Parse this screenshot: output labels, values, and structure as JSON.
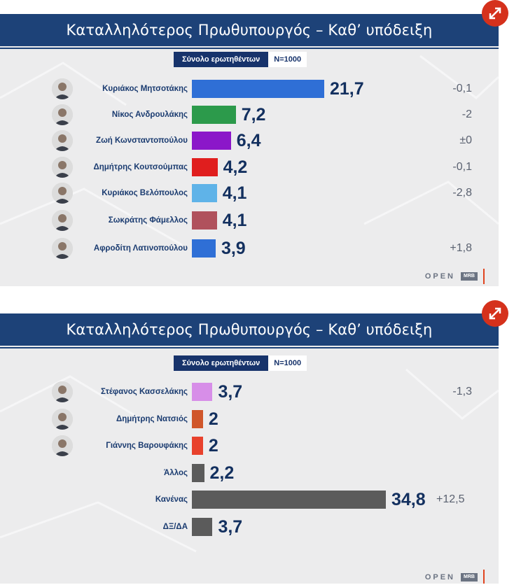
{
  "panels": [
    {
      "title": "Καταλληλότερος Πρωθυπουργός – Καθ’ υπόδειξη",
      "subtitle_label": "Σύνολο ερωτηθέντων",
      "n_label": "N=1000",
      "logo_text": "OPEN",
      "logo_badge": "MRB"
    },
    {
      "title": "Καταλληλότερος Πρωθυπουργός – Καθ’ υπόδειξη",
      "subtitle_label": "Σύνολο ερωτηθέντων",
      "n_label": "N=1000",
      "logo_text": "OPEN",
      "logo_badge": "MRB"
    }
  ],
  "chart_data": [
    {
      "type": "bar",
      "orientation": "horizontal",
      "title": "Καταλληλότερος Πρωθυπουργός – Καθ’ υπόδειξη",
      "categories": [
        "Κυριάκος Μητσοτάκης",
        "Νίκος Ανδρουλάκης",
        "Ζωή Κωνσταντοπούλου",
        "Δημήτρης Κουτσούμπας",
        "Κυριάκος Βελόπουλος",
        "Σωκράτης Φάμελλος",
        "Αφροδίτη Λατινοπούλου"
      ],
      "values": [
        21.7,
        7.2,
        6.4,
        4.2,
        4.1,
        4.1,
        3.9
      ],
      "value_labels": [
        "21,7",
        "7,2",
        "6,4",
        "4,2",
        "4,1",
        "4,1",
        "3,9"
      ],
      "changes": [
        "-0,1",
        "-2",
        "±0",
        "-0,1",
        "-2,8",
        "",
        "+1,8"
      ],
      "colors": [
        "#2f6fd6",
        "#2c9a4b",
        "#8b17c9",
        "#e01e1e",
        "#5fb3e8",
        "#b0515c",
        "#2f6fd6"
      ],
      "with_avatar": [
        true,
        true,
        true,
        true,
        true,
        true,
        true
      ]
    },
    {
      "type": "bar",
      "orientation": "horizontal",
      "title": "Καταλληλότερος Πρωθυπουργός – Καθ’ υπόδειξη",
      "categories": [
        "Στέφανος Κασσελάκης",
        "Δημήτρης Νατσιός",
        "Γιάννης Βαρουφάκης",
        "Άλλος",
        "Κανένας",
        "ΔΞ/ΔΑ"
      ],
      "values": [
        3.7,
        2,
        2,
        2.2,
        34.8,
        3.7
      ],
      "value_labels": [
        "3,7",
        "2",
        "2",
        "2,2",
        "34,8",
        "3,7"
      ],
      "changes": [
        "-1,3",
        "",
        "",
        "",
        "+12,5",
        ""
      ],
      "colors": [
        "#d78ee8",
        "#d0562a",
        "#e8412c",
        "#5b5b5b",
        "#5b5b5b",
        "#5b5b5b"
      ],
      "with_avatar": [
        true,
        true,
        true,
        false,
        false,
        false
      ]
    }
  ]
}
